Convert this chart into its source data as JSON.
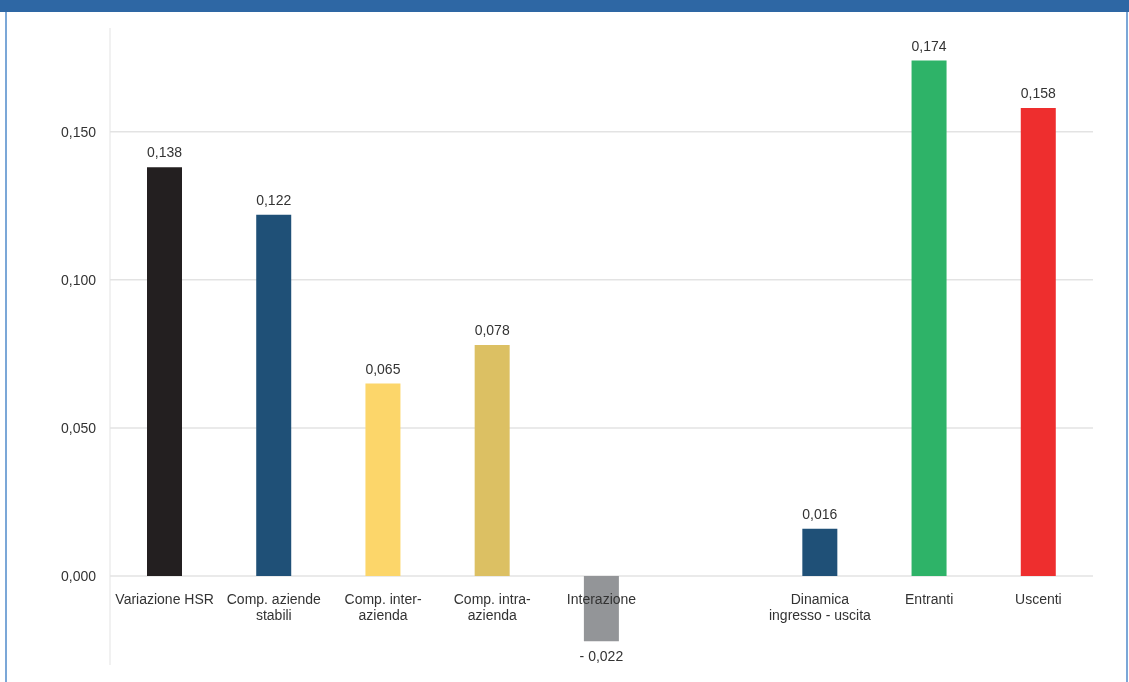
{
  "chart_data": {
    "type": "bar",
    "categories": [
      "Variazione HSR",
      "Comp. aziende stabili",
      "Comp. inter-azienda",
      "Comp. intra-azienda",
      "Interazione",
      null,
      "Dinamica ingresso - uscita",
      "Entranti",
      "Uscenti"
    ],
    "values": [
      0.138,
      0.122,
      0.065,
      0.078,
      -0.022,
      null,
      0.016,
      0.174,
      0.158
    ],
    "colors": [
      "#231f20",
      "#1f5077",
      "#fcd66a",
      "#dcc063",
      "#939598",
      null,
      "#1f5077",
      "#2eb368",
      "#ee2e2e"
    ],
    "value_labels": [
      "0,138",
      "0,122",
      "0,065",
      "0,078",
      "- 0,022",
      null,
      "0,016",
      "0,174",
      "0,158"
    ],
    "ylim": [
      -0.03,
      0.185
    ],
    "yticks": [
      {
        "value": 0,
        "label": "0,000"
      },
      {
        "value": 0.05,
        "label": "0,050"
      },
      {
        "value": 0.1,
        "label": "0,100"
      },
      {
        "value": 0.15,
        "label": "0,150"
      }
    ],
    "grid": "y"
  }
}
